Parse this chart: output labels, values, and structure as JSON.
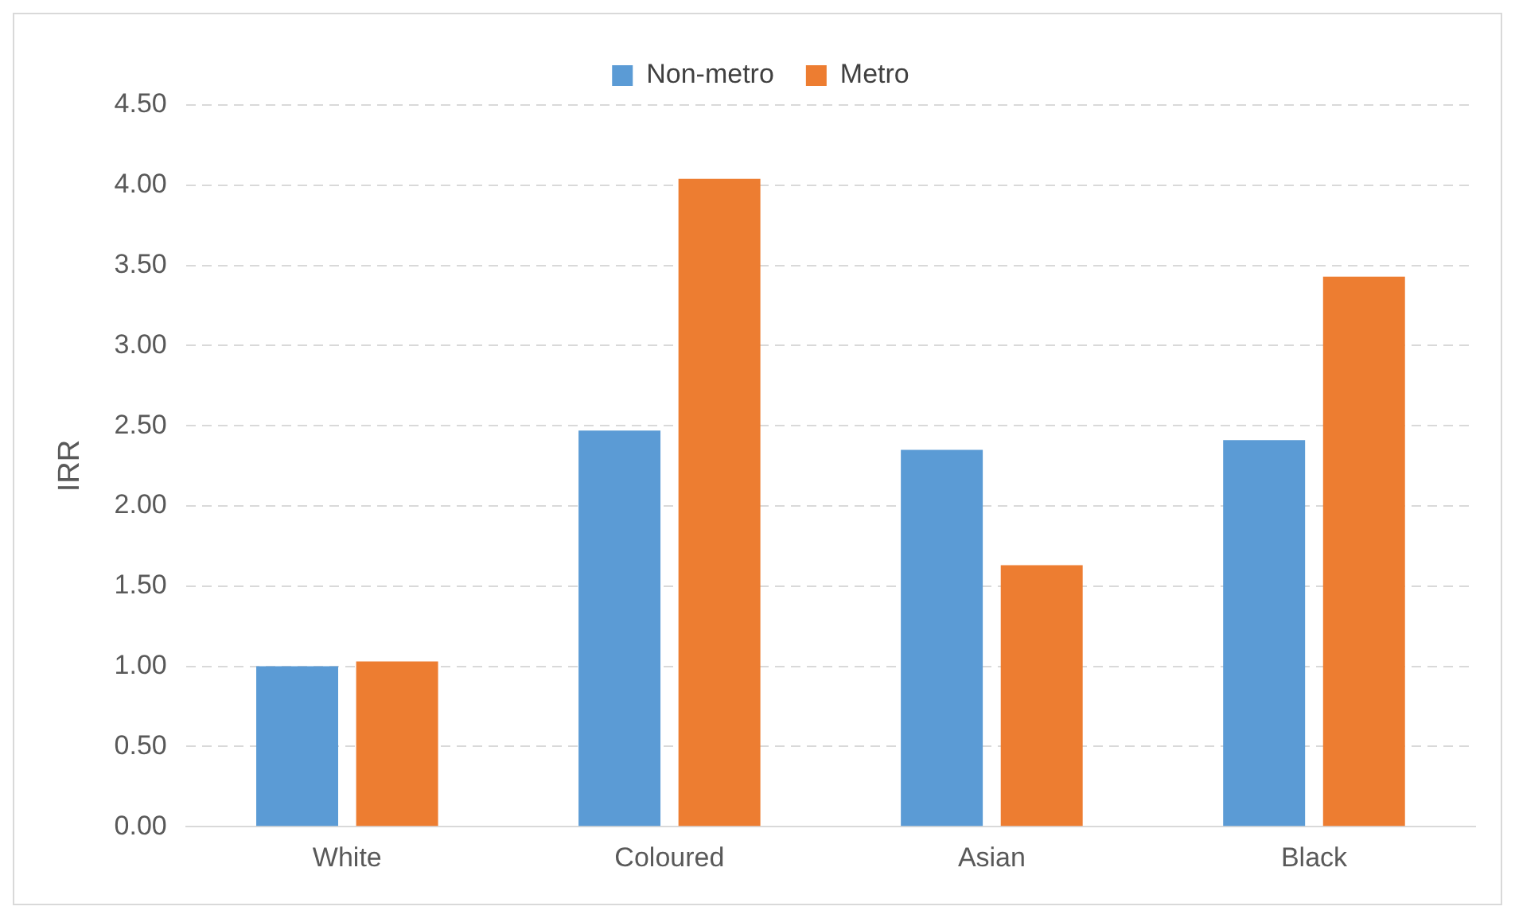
{
  "chart_data": {
    "type": "bar",
    "ylabel": "IRR",
    "categories": [
      "White",
      "Coloured",
      "Asian",
      "Black"
    ],
    "series": [
      {
        "name": "Non-metro",
        "color": "#5b9bd5",
        "values": [
          1.0,
          2.47,
          2.35,
          2.41
        ]
      },
      {
        "name": "Metro",
        "color": "#ed7d31",
        "values": [
          1.03,
          4.04,
          1.63,
          3.43
        ]
      }
    ],
    "ylim": [
      0,
      4.5
    ],
    "yticks": [
      {
        "value": 0,
        "label": "0.00"
      },
      {
        "value": 0.5,
        "label": "0.50"
      },
      {
        "value": 1,
        "label": "1.00"
      },
      {
        "value": 1.5,
        "label": "1.50"
      },
      {
        "value": 2,
        "label": "2.00"
      },
      {
        "value": 2.5,
        "label": "2.50"
      },
      {
        "value": 3,
        "label": "3.00"
      },
      {
        "value": 3.5,
        "label": "3.50"
      },
      {
        "value": 4,
        "label": "4.00"
      },
      {
        "value": 4.5,
        "label": "4.50"
      }
    ],
    "grid": "y",
    "legend": "top"
  }
}
